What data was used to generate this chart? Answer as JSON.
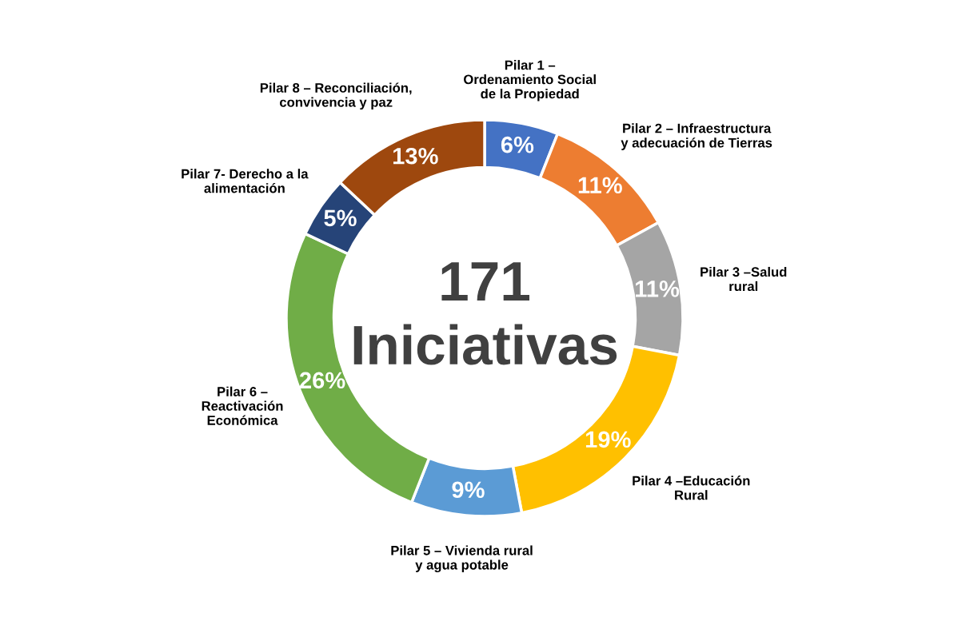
{
  "chart_data": {
    "type": "donut",
    "categories": [
      "Pilar 1 –\nOrdenamiento Social\nde la Propiedad",
      "Pilar 2 – Infraestructura\ny adecuación de Tierras",
      "Pilar 3 –Salud\nrural",
      "Pilar 4 –Educación\nRural",
      "Pilar 5 – Vivienda rural\ny agua potable",
      "Pilar 6 –\nReactivación\nEconómica",
      "Pilar 7- Derecho a la\nalimentación",
      "Pilar 8 – Reconciliación,\nconvivencia y paz"
    ],
    "values": [
      6,
      11,
      11,
      19,
      9,
      26,
      5,
      13
    ],
    "value_labels": [
      "6%",
      "11%",
      "11%",
      "19%",
      "9%",
      "26%",
      "5%",
      "13%"
    ],
    "colors": [
      "#4472c4",
      "#ed7d31",
      "#a5a5a5",
      "#ffc000",
      "#5b9bd5",
      "#70ad47",
      "#264478",
      "#9e480e"
    ],
    "annotations": [
      "171\nIniciativas"
    ],
    "legend": false
  }
}
